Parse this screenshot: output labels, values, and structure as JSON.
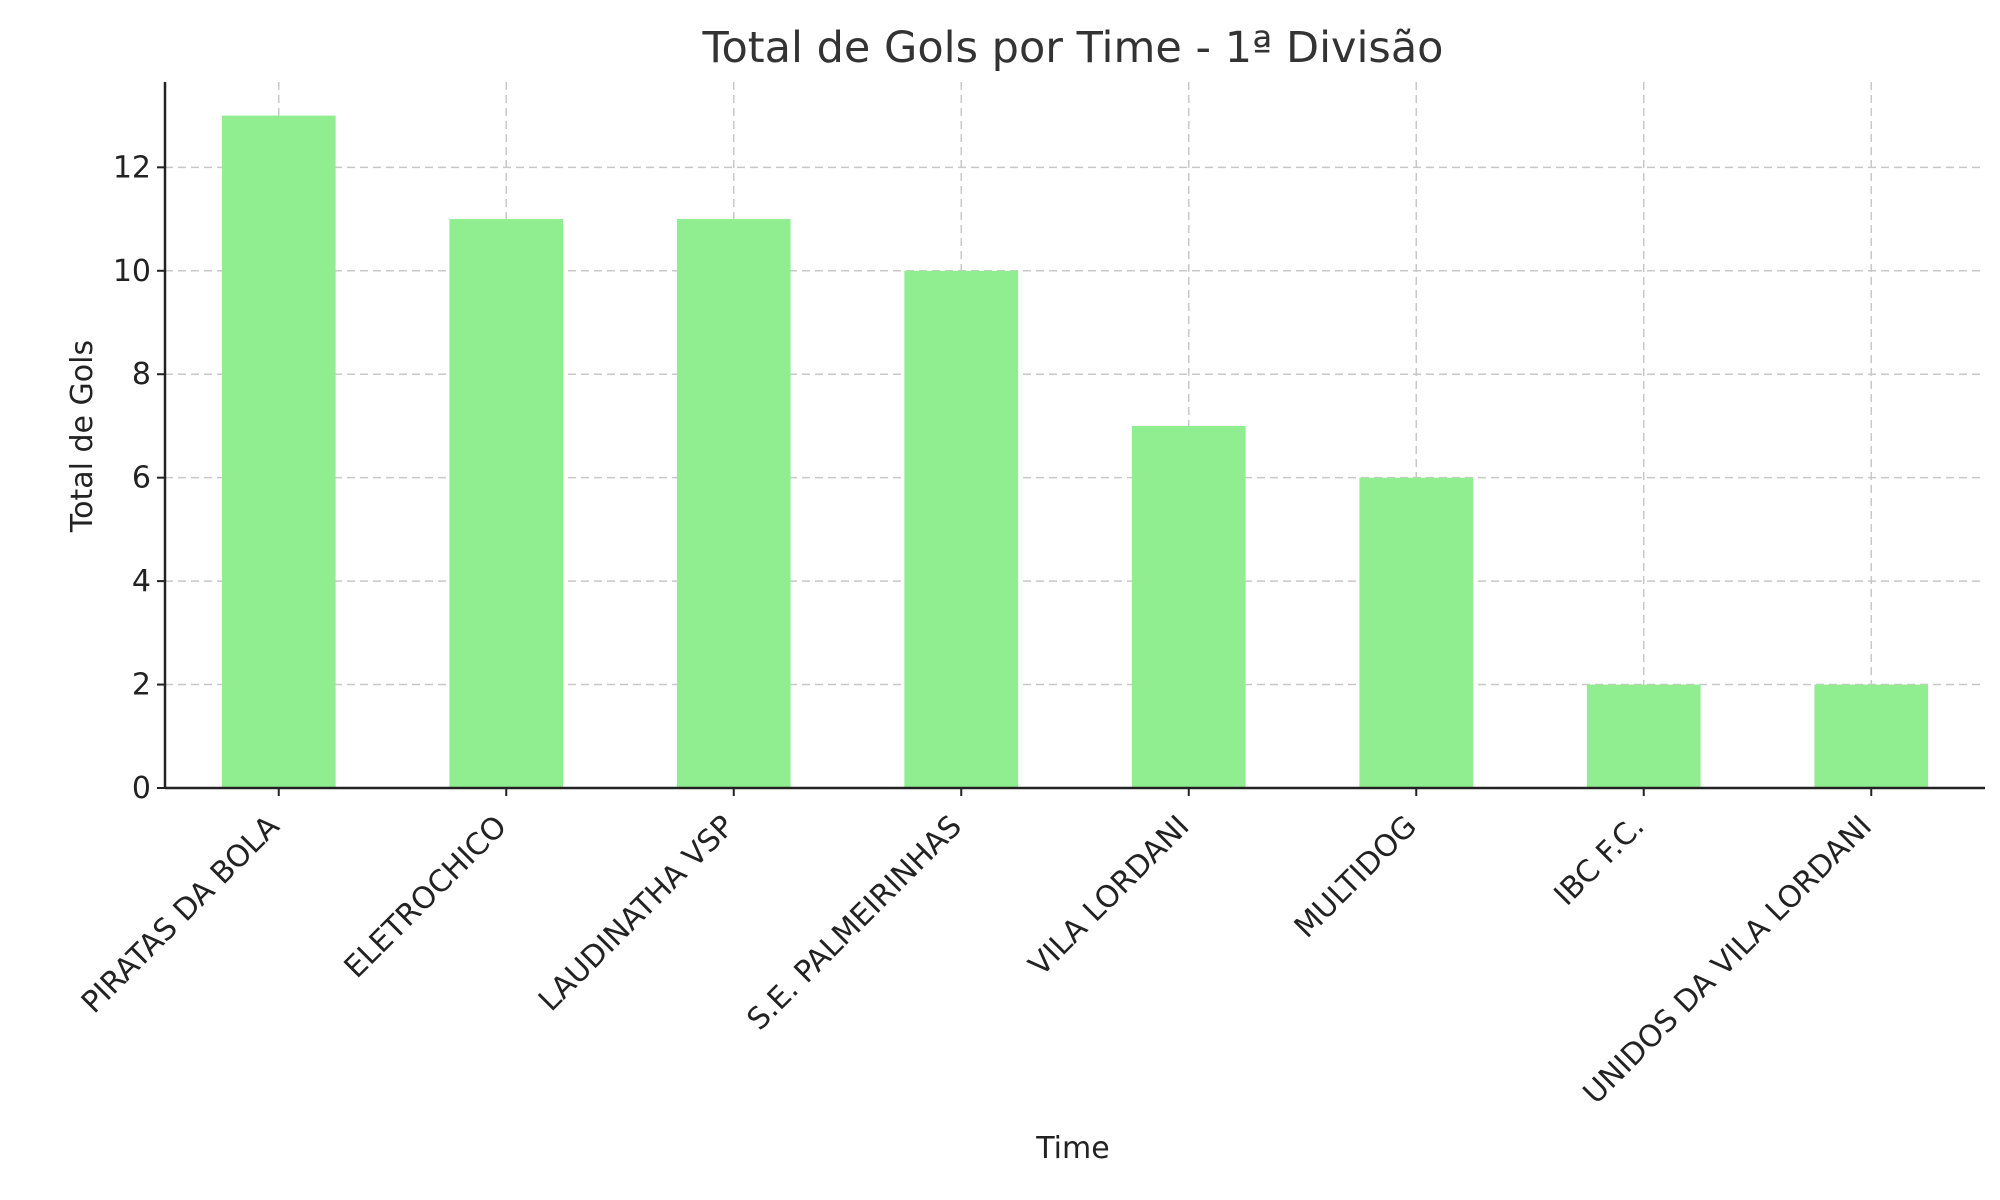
{
  "chart_data": {
    "type": "bar",
    "title": "Total de Gols por Time - 1ª Divisão",
    "xlabel": "Time",
    "ylabel": "Total de Gols",
    "categories": [
      "PIRATAS DA BOLA",
      "ELETROCHICO",
      "LAUDINATHA VSP",
      "S.E. PALMEIRINHAS",
      "VILA LORDANI",
      "MULTIDOG",
      "IBC F.C.",
      "UNIDOS DA VILA LORDANI"
    ],
    "values": [
      13,
      11,
      11,
      10,
      7,
      6,
      2,
      2
    ],
    "ylim": [
      0,
      13.65
    ],
    "yticks": [
      0,
      2,
      4,
      6,
      8,
      10,
      12
    ],
    "grid": true,
    "bar_color": "#90ee90"
  }
}
